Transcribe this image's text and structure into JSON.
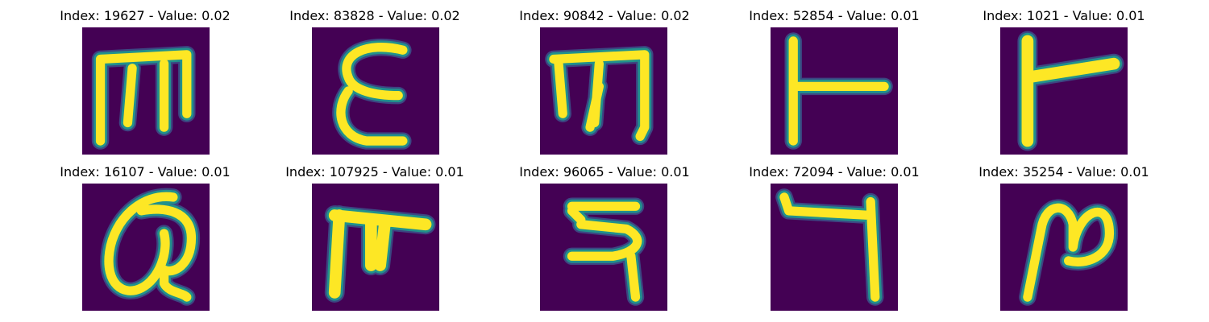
{
  "colors": {
    "background": "#440154",
    "stroke_mid": "#21918c",
    "stroke_core": "#fde725",
    "stroke_edge": "#3b528b"
  },
  "panels": [
    {
      "title": "Index: 19627 - Value: 0.02",
      "glyph": "ш-shape (three prongs up, two legs down)"
    },
    {
      "title": "Index: 83828 - Value: 0.02",
      "glyph": "epsilon"
    },
    {
      "title": "Index: 90842 - Value: 0.02",
      "glyph": "m-shape"
    },
    {
      "title": "Index: 52854 - Value: 0.01",
      "glyph": "vertical bar with right arm"
    },
    {
      "title": "Index: 1021 - Value: 0.01",
      "glyph": "vertical bar with thick right arm"
    },
    {
      "title": "Index: 16107 - Value: 0.01",
      "glyph": "loop with tail"
    },
    {
      "title": "Index: 107925 - Value: 0.01",
      "glyph": "ш-shape thick"
    },
    {
      "title": "Index: 96065 - Value: 0.01",
      "glyph": "reversed S-like hook"
    },
    {
      "title": "Index: 72094 - Value: 0.01",
      "glyph": "reversed L"
    },
    {
      "title": "Index: 35254 - Value: 0.01",
      "glyph": "N-like loop"
    }
  ]
}
